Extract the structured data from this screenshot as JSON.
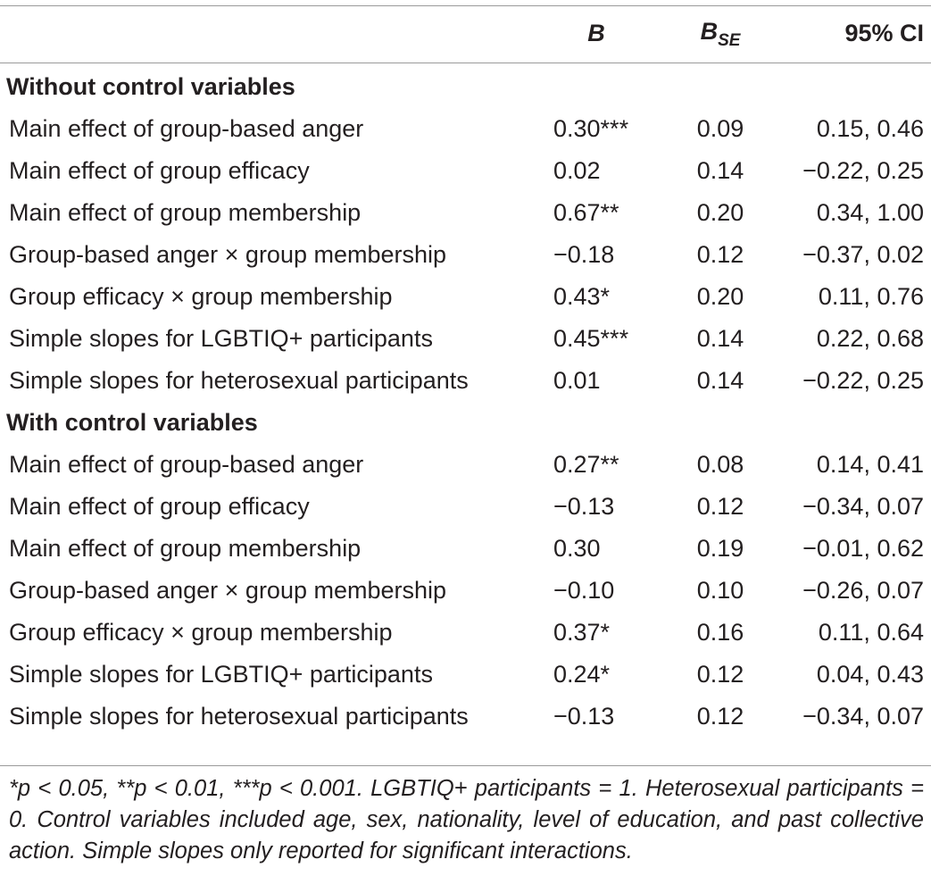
{
  "table": {
    "headers": {
      "label": "",
      "b": "B",
      "se_main": "B",
      "se_sub": "SE",
      "ci": "95% CI"
    },
    "sections": [
      {
        "title": "Without control variables",
        "rows": [
          {
            "label": "Main effect of group-based anger",
            "b": "0.30***",
            "se": "0.09",
            "ci": "0.15, 0.46"
          },
          {
            "label": "Main effect of group efficacy",
            "b": "0.02",
            "se": "0.14",
            "ci": "−0.22, 0.25"
          },
          {
            "label": "Main effect of group membership",
            "b": "0.67**",
            "se": "0.20",
            "ci": "0.34, 1.00"
          },
          {
            "label": "Group-based anger × group membership",
            "b": "−0.18",
            "se": "0.12",
            "ci": "−0.37, 0.02"
          },
          {
            "label": "Group efficacy × group membership",
            "b": "0.43*",
            "se": "0.20",
            "ci": "0.11, 0.76"
          },
          {
            "label": "Simple slopes for LGBTIQ+ participants",
            "b": "0.45***",
            "se": "0.14",
            "ci": "0.22, 0.68"
          },
          {
            "label": "Simple slopes for heterosexual participants",
            "b": "0.01",
            "se": "0.14",
            "ci": "−0.22, 0.25"
          }
        ]
      },
      {
        "title": "With control variables",
        "rows": [
          {
            "label": "Main effect of group-based anger",
            "b": "0.27**",
            "se": "0.08",
            "ci": "0.14, 0.41"
          },
          {
            "label": "Main effect of group efficacy",
            "b": "−0.13",
            "se": "0.12",
            "ci": "−0.34, 0.07"
          },
          {
            "label": "Main effect of group membership",
            "b": "0.30",
            "se": "0.19",
            "ci": "−0.01, 0.62"
          },
          {
            "label": "Group-based anger × group membership",
            "b": "−0.10",
            "se": "0.10",
            "ci": "−0.26, 0.07"
          },
          {
            "label": "Group efficacy × group membership",
            "b": "0.37*",
            "se": "0.16",
            "ci": "0.11, 0.64"
          },
          {
            "label": "Simple slopes for LGBTIQ+ participants",
            "b": "0.24*",
            "se": "0.12",
            "ci": "0.04, 0.43"
          },
          {
            "label": "Simple slopes for heterosexual participants",
            "b": "−0.13",
            "se": "0.12",
            "ci": "−0.34, 0.07"
          }
        ]
      }
    ]
  },
  "footnote": "*p < 0.05, **p < 0.01, ***p < 0.001. LGBTIQ+ participants = 1. Heterosexual participants = 0. Control variables included age, sex, nationality, level of education, and past collective action. Simple slopes only reported for significant interactions."
}
